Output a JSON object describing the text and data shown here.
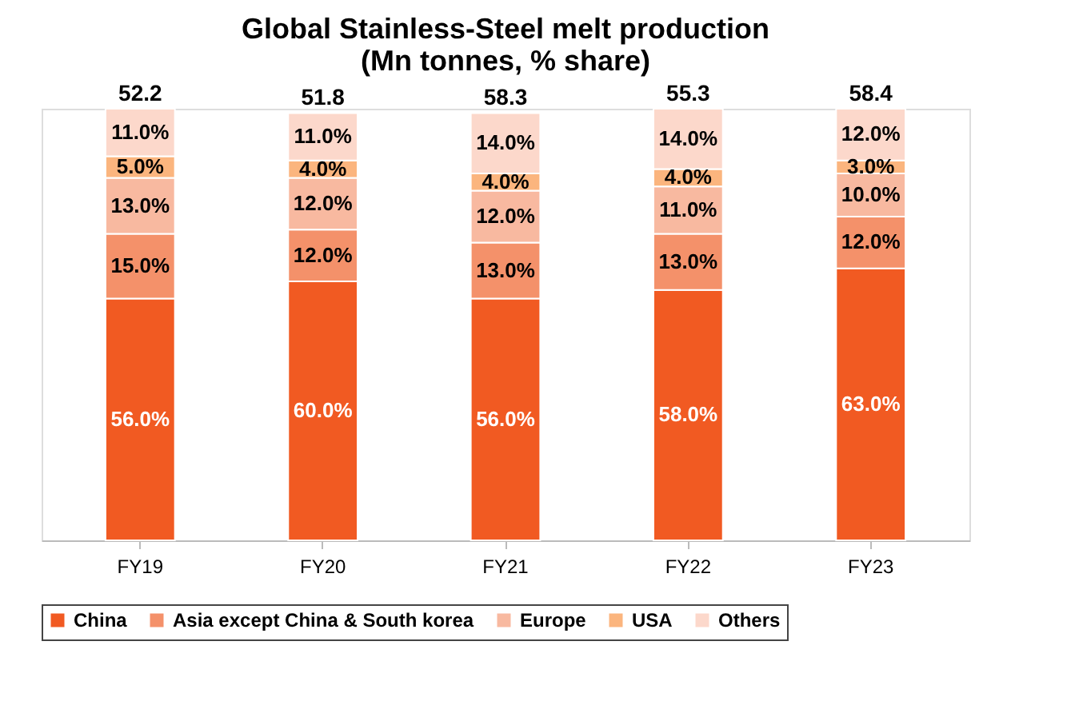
{
  "chart_data": {
    "type": "bar",
    "title": "Global Stainless-Steel melt production\n(Mn tonnes, % share)",
    "stacked": true,
    "legend": "bottom",
    "categories": [
      "FY19",
      "FY20",
      "FY21",
      "FY22",
      "FY23"
    ],
    "series": [
      {
        "name": "China",
        "color": "#f15a22",
        "values": [
          56,
          60,
          56,
          58,
          63
        ],
        "value_labels": [
          "56.0%",
          "60.0%",
          "56.0%",
          "58.0%",
          "63.0%"
        ]
      },
      {
        "name": "Asia except China & South korea",
        "color": "#f4916a",
        "values": [
          15,
          12,
          13,
          13,
          12
        ],
        "value_labels": [
          "15.0%",
          "12.0%",
          "13.0%",
          "13.0%",
          "12.0%"
        ]
      },
      {
        "name": "Europe",
        "color": "#f8b9a0",
        "values": [
          13,
          12,
          12,
          11,
          10
        ],
        "value_labels": [
          "13.0%",
          "12.0%",
          "12.0%",
          "11.0%",
          "10.0%"
        ]
      },
      {
        "name": "USA",
        "color": "#fbb57e",
        "values": [
          5,
          4,
          4,
          4,
          3
        ],
        "value_labels": [
          "5.0%",
          "4.0%",
          "4.0%",
          "4.0%",
          "3.0%"
        ]
      },
      {
        "name": "Others",
        "color": "#fcd8cb",
        "values": [
          11,
          11,
          14,
          14,
          12
        ],
        "value_labels": [
          "11.0%",
          "11.0%",
          "14.0%",
          "14.0%",
          "12.0%"
        ]
      }
    ],
    "annotations": [
      "52.2",
      "51.8",
      "58.3",
      "55.3",
      "58.4"
    ],
    "grid": false
  }
}
